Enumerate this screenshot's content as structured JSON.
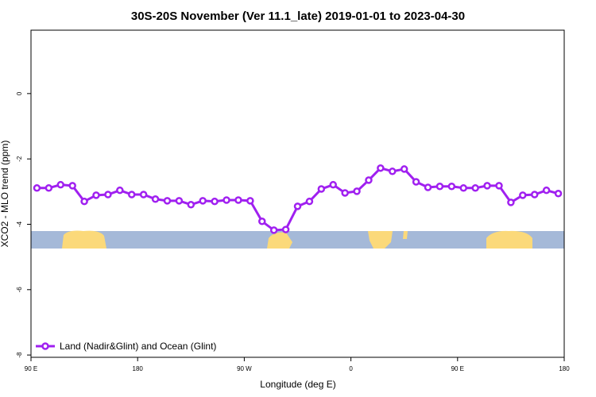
{
  "chart_data": {
    "type": "line",
    "title": "30S-20S November (Ver 11.1_late)   2019-01-01 to 2023-04-30",
    "x_label": "Longitude (deg E)",
    "y_label": "XCO2 - MLO trend (ppm)",
    "x": [
      95,
      105,
      115,
      125,
      135,
      145,
      155,
      165,
      175,
      185,
      195,
      205,
      215,
      225,
      235,
      245,
      255,
      265,
      275,
      285,
      295,
      305,
      315,
      325,
      335,
      345,
      355,
      365,
      375,
      385,
      395,
      405,
      415,
      425,
      435,
      445,
      455,
      465,
      475,
      485,
      495,
      505,
      515,
      525,
      535
    ],
    "series": [
      {
        "name": "Land (Nadir&Glint) and Ocean (Glint)",
        "color": "#a020f0",
        "values": [
          -2.89,
          -2.89,
          -2.79,
          -2.82,
          -3.3,
          -3.11,
          -3.09,
          -2.96,
          -3.09,
          -3.09,
          -3.23,
          -3.28,
          -3.28,
          -3.4,
          -3.28,
          -3.3,
          -3.26,
          -3.26,
          -3.28,
          -3.91,
          -4.18,
          -4.16,
          -3.45,
          -3.3,
          -2.92,
          -2.79,
          -3.04,
          -2.99,
          -2.65,
          -2.28,
          -2.38,
          -2.31,
          -2.7,
          -2.87,
          -2.84,
          -2.84,
          -2.89,
          -2.89,
          -2.82,
          -2.82,
          -3.33,
          -3.11,
          -3.09,
          -2.96,
          -3.06
        ]
      }
    ],
    "xlim": [
      90,
      540
    ],
    "xticks": [
      {
        "value": 90,
        "label": "90 E"
      },
      {
        "value": 180,
        "label": "180"
      },
      {
        "value": 270,
        "label": "90 W"
      },
      {
        "value": 360,
        "label": "0"
      },
      {
        "value": 450,
        "label": "90 E"
      },
      {
        "value": 540,
        "label": "180"
      }
    ],
    "ylim": [
      -8.07,
      1.94
    ],
    "yticks": [
      0,
      -2,
      -4,
      -6,
      -8
    ],
    "legend_position": "bottom-left"
  }
}
